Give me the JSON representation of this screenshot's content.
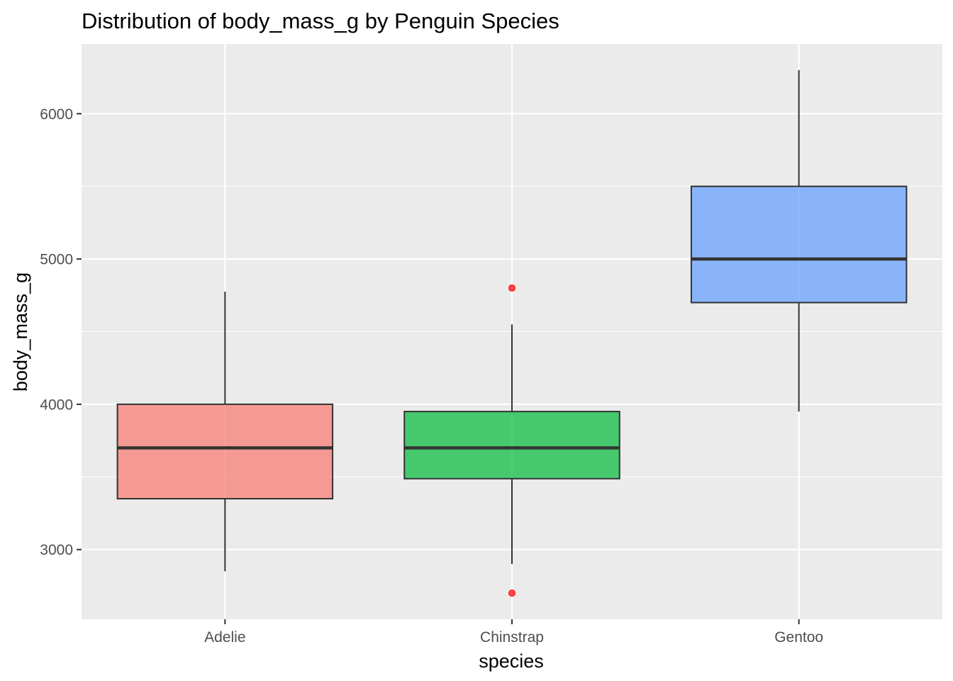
{
  "chart_data": {
    "type": "boxplot",
    "title": "Distribution of body_mass_g by Penguin Species",
    "xlabel": "species",
    "ylabel": "body_mass_g",
    "categories": [
      "Adelie",
      "Chinstrap",
      "Gentoo"
    ],
    "ylim": [
      2520,
      6480
    ],
    "yticks": [
      3000,
      4000,
      5000,
      6000
    ],
    "yticks_labels": [
      "3000",
      "4000",
      "5000",
      "6000"
    ],
    "grid": true,
    "legend": "none",
    "boxes": [
      {
        "category": "Adelie",
        "min": 2850,
        "q1": 3350,
        "median": 3700,
        "q3": 4000,
        "max": 4775,
        "outliers": [],
        "color": "#F8766D"
      },
      {
        "category": "Chinstrap",
        "min": 2900,
        "q1": 3488,
        "median": 3700,
        "q3": 3950,
        "max": 4550,
        "outliers": [
          2700,
          4800
        ],
        "color": "#00BA38"
      },
      {
        "category": "Gentoo",
        "min": 3950,
        "q1": 4700,
        "median": 5000,
        "q3": 5500,
        "max": 6300,
        "outliers": [],
        "color": "#619CFF"
      }
    ],
    "colors": {
      "panel": "#EBEBEB",
      "grid": "#FFFFFF",
      "box_line": "#333333",
      "outlier": "#FF0000"
    }
  }
}
